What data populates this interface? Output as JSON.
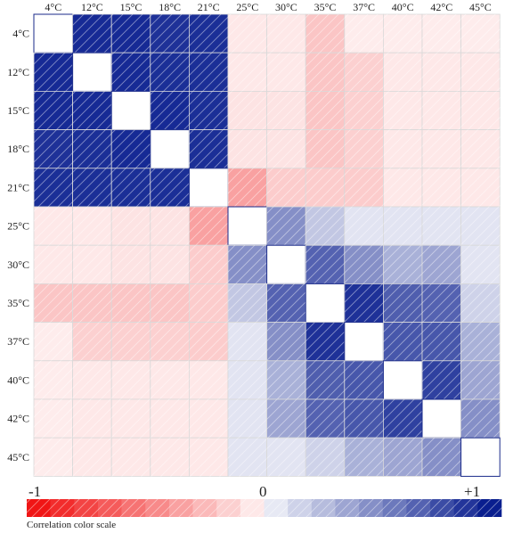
{
  "chart_data": {
    "type": "heatmap",
    "x_labels": [
      "4°C",
      "12°C",
      "15°C",
      "18°C",
      "21°C",
      "25°C",
      "30°C",
      "35°C",
      "37°C",
      "40°C",
      "42°C",
      "45°C"
    ],
    "y_labels": [
      "4°C",
      "12°C",
      "15°C",
      "18°C",
      "21°C",
      "25°C",
      "30°C",
      "35°C",
      "37°C",
      "40°C",
      "42°C",
      "45°C"
    ],
    "value_range": [
      -1,
      1
    ],
    "matrix": [
      [
        null,
        0.95,
        0.95,
        0.92,
        0.93,
        -0.1,
        -0.1,
        -0.25,
        -0.08,
        -0.08,
        -0.08,
        -0.08
      ],
      [
        0.95,
        null,
        0.95,
        0.93,
        0.93,
        -0.1,
        -0.1,
        -0.25,
        -0.2,
        -0.1,
        -0.1,
        -0.1
      ],
      [
        0.95,
        0.95,
        null,
        0.95,
        0.93,
        -0.12,
        -0.12,
        -0.25,
        -0.2,
        -0.1,
        -0.1,
        -0.1
      ],
      [
        0.92,
        0.93,
        0.95,
        null,
        0.93,
        -0.12,
        -0.12,
        -0.25,
        -0.2,
        -0.1,
        -0.1,
        -0.1
      ],
      [
        0.93,
        0.93,
        0.93,
        0.93,
        null,
        -0.4,
        -0.22,
        -0.22,
        -0.22,
        -0.1,
        -0.1,
        -0.1
      ],
      [
        -0.1,
        -0.1,
        -0.12,
        -0.12,
        -0.4,
        null,
        0.5,
        0.25,
        0.12,
        0.12,
        0.12,
        0.12
      ],
      [
        -0.1,
        -0.1,
        -0.12,
        -0.12,
        -0.22,
        0.5,
        null,
        0.7,
        0.5,
        0.35,
        0.4,
        0.12
      ],
      [
        -0.25,
        -0.25,
        -0.25,
        -0.25,
        -0.22,
        0.25,
        0.7,
        null,
        0.92,
        0.72,
        0.7,
        0.2
      ],
      [
        -0.08,
        -0.2,
        -0.2,
        -0.2,
        -0.22,
        0.12,
        0.5,
        0.92,
        null,
        0.75,
        0.75,
        0.35
      ],
      [
        -0.08,
        -0.1,
        -0.1,
        -0.1,
        -0.1,
        0.12,
        0.35,
        0.72,
        0.75,
        null,
        0.85,
        0.4
      ],
      [
        -0.08,
        -0.1,
        -0.1,
        -0.1,
        -0.1,
        0.12,
        0.4,
        0.7,
        0.75,
        0.85,
        null,
        0.5
      ],
      [
        -0.08,
        -0.1,
        -0.1,
        -0.1,
        -0.1,
        0.12,
        0.12,
        0.2,
        0.35,
        0.4,
        0.5,
        null
      ]
    ],
    "colorbar": {
      "min_label": "-1",
      "mid_label": "0",
      "max_label": "+1",
      "caption": "Correlation  color scale",
      "values": [
        -1,
        -0.9,
        -0.8,
        -0.7,
        -0.6,
        -0.5,
        -0.4,
        -0.3,
        -0.2,
        -0.1,
        0.1,
        0.2,
        0.3,
        0.4,
        0.5,
        0.6,
        0.7,
        0.8,
        0.9,
        1
      ]
    },
    "colors": {
      "positive": "#0a1f8f",
      "negative": "#f01515",
      "neutral": "#ffffff",
      "grid": "#d9d9d9"
    },
    "grid": true,
    "hatched": true
  }
}
